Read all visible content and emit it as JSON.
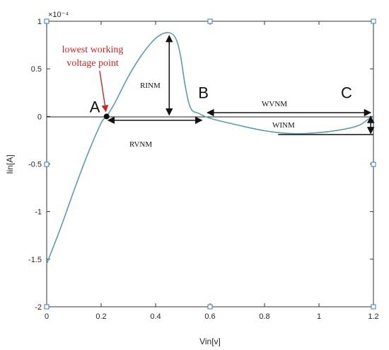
{
  "chart_data": {
    "type": "line",
    "xlabel": "Vin[v]",
    "ylabel": "Iin[A]",
    "xlim": [
      0,
      1.2
    ],
    "ylim": [
      -2,
      1
    ],
    "y_multiplier": "×10⁻⁴",
    "x_ticks": [
      0,
      0.2,
      0.4,
      0.6,
      0.8,
      1,
      1.2
    ],
    "x_tick_labels": [
      "0",
      "0.2",
      "0.4",
      "0.6",
      "0.8",
      "1",
      "1.2"
    ],
    "y_ticks": [
      -2,
      -1.5,
      -1,
      -0.5,
      0,
      0.5,
      1
    ],
    "y_tick_labels": [
      "-2",
      "-1.5",
      "-1",
      "-0.5",
      "0",
      "0.5",
      "1"
    ],
    "grid": false,
    "series": [
      {
        "x": [
          0,
          0.05,
          0.1,
          0.15,
          0.2,
          0.22,
          0.25,
          0.3,
          0.35,
          0.4,
          0.44,
          0.47,
          0.49,
          0.51,
          0.53,
          0.56,
          0.6,
          0.7,
          0.8,
          0.9,
          1.0,
          1.1,
          1.15,
          1.18,
          1.2
        ],
        "y": [
          -1.55,
          -1.18,
          -0.78,
          -0.4,
          -0.07,
          0.0,
          0.14,
          0.42,
          0.65,
          0.82,
          0.88,
          0.84,
          0.66,
          0.3,
          0.08,
          0.03,
          -0.02,
          -0.09,
          -0.15,
          -0.18,
          -0.17,
          -0.13,
          -0.09,
          -0.03,
          0.0
        ],
        "color": "#5b9bb5"
      }
    ],
    "points": [
      {
        "label": "A",
        "x": 0.22,
        "y": 0.0
      },
      {
        "label": "B",
        "x": 0.58,
        "y": 0.0
      },
      {
        "label": "C",
        "x": 1.2,
        "y": 0.0
      }
    ],
    "annotations": {
      "lowest_line1": "lowest working",
      "lowest_line2": "voltage point",
      "rinm": "RINM",
      "rvnm": "RVNM",
      "wvnm": "WVNM",
      "winm": "WINM"
    },
    "colors": {
      "curve": "#5b9bb5",
      "annotation_red": "#d62222",
      "arrows": "#111111"
    }
  }
}
